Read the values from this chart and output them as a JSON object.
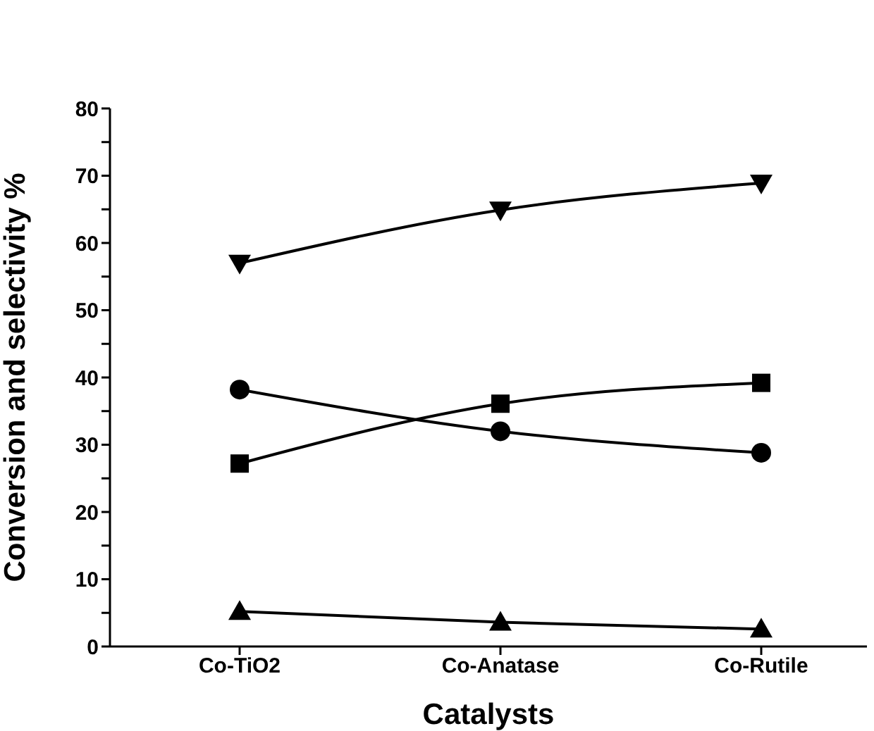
{
  "chart_data": {
    "type": "line",
    "xlabel": "Catalysts",
    "ylabel": "Conversion and selectivity %",
    "categories": [
      "Co-TiO2",
      "Co-Anatase",
      "Co-Rutile"
    ],
    "series": [
      {
        "color": "#000000",
        "marker": "triangle-down",
        "values": [
          57,
          64.9,
          68.9
        ]
      },
      {
        "color": "#000000",
        "marker": "circle",
        "values": [
          38.2,
          32,
          28.8
        ]
      },
      {
        "color": "#000000",
        "marker": "square",
        "values": [
          27.2,
          36.1,
          39.2
        ]
      },
      {
        "color": "#000000",
        "marker": "triangle",
        "values": [
          5.2,
          3.6,
          2.6
        ]
      }
    ],
    "ylim": [
      0,
      80
    ],
    "yticks": [
      0,
      {
        "value": 5,
        "label": null
      },
      10,
      {
        "value": 15,
        "label": null
      },
      20,
      {
        "value": 25,
        "label": null
      },
      30,
      {
        "value": 35,
        "label": null
      },
      40,
      {
        "value": 45,
        "label": null
      },
      50,
      {
        "value": 55,
        "label": null
      },
      60,
      {
        "value": 65,
        "label": null
      },
      70,
      {
        "value": 75,
        "label": null
      },
      80
    ],
    "grid": false,
    "legend": false,
    "line_style": "solid"
  }
}
